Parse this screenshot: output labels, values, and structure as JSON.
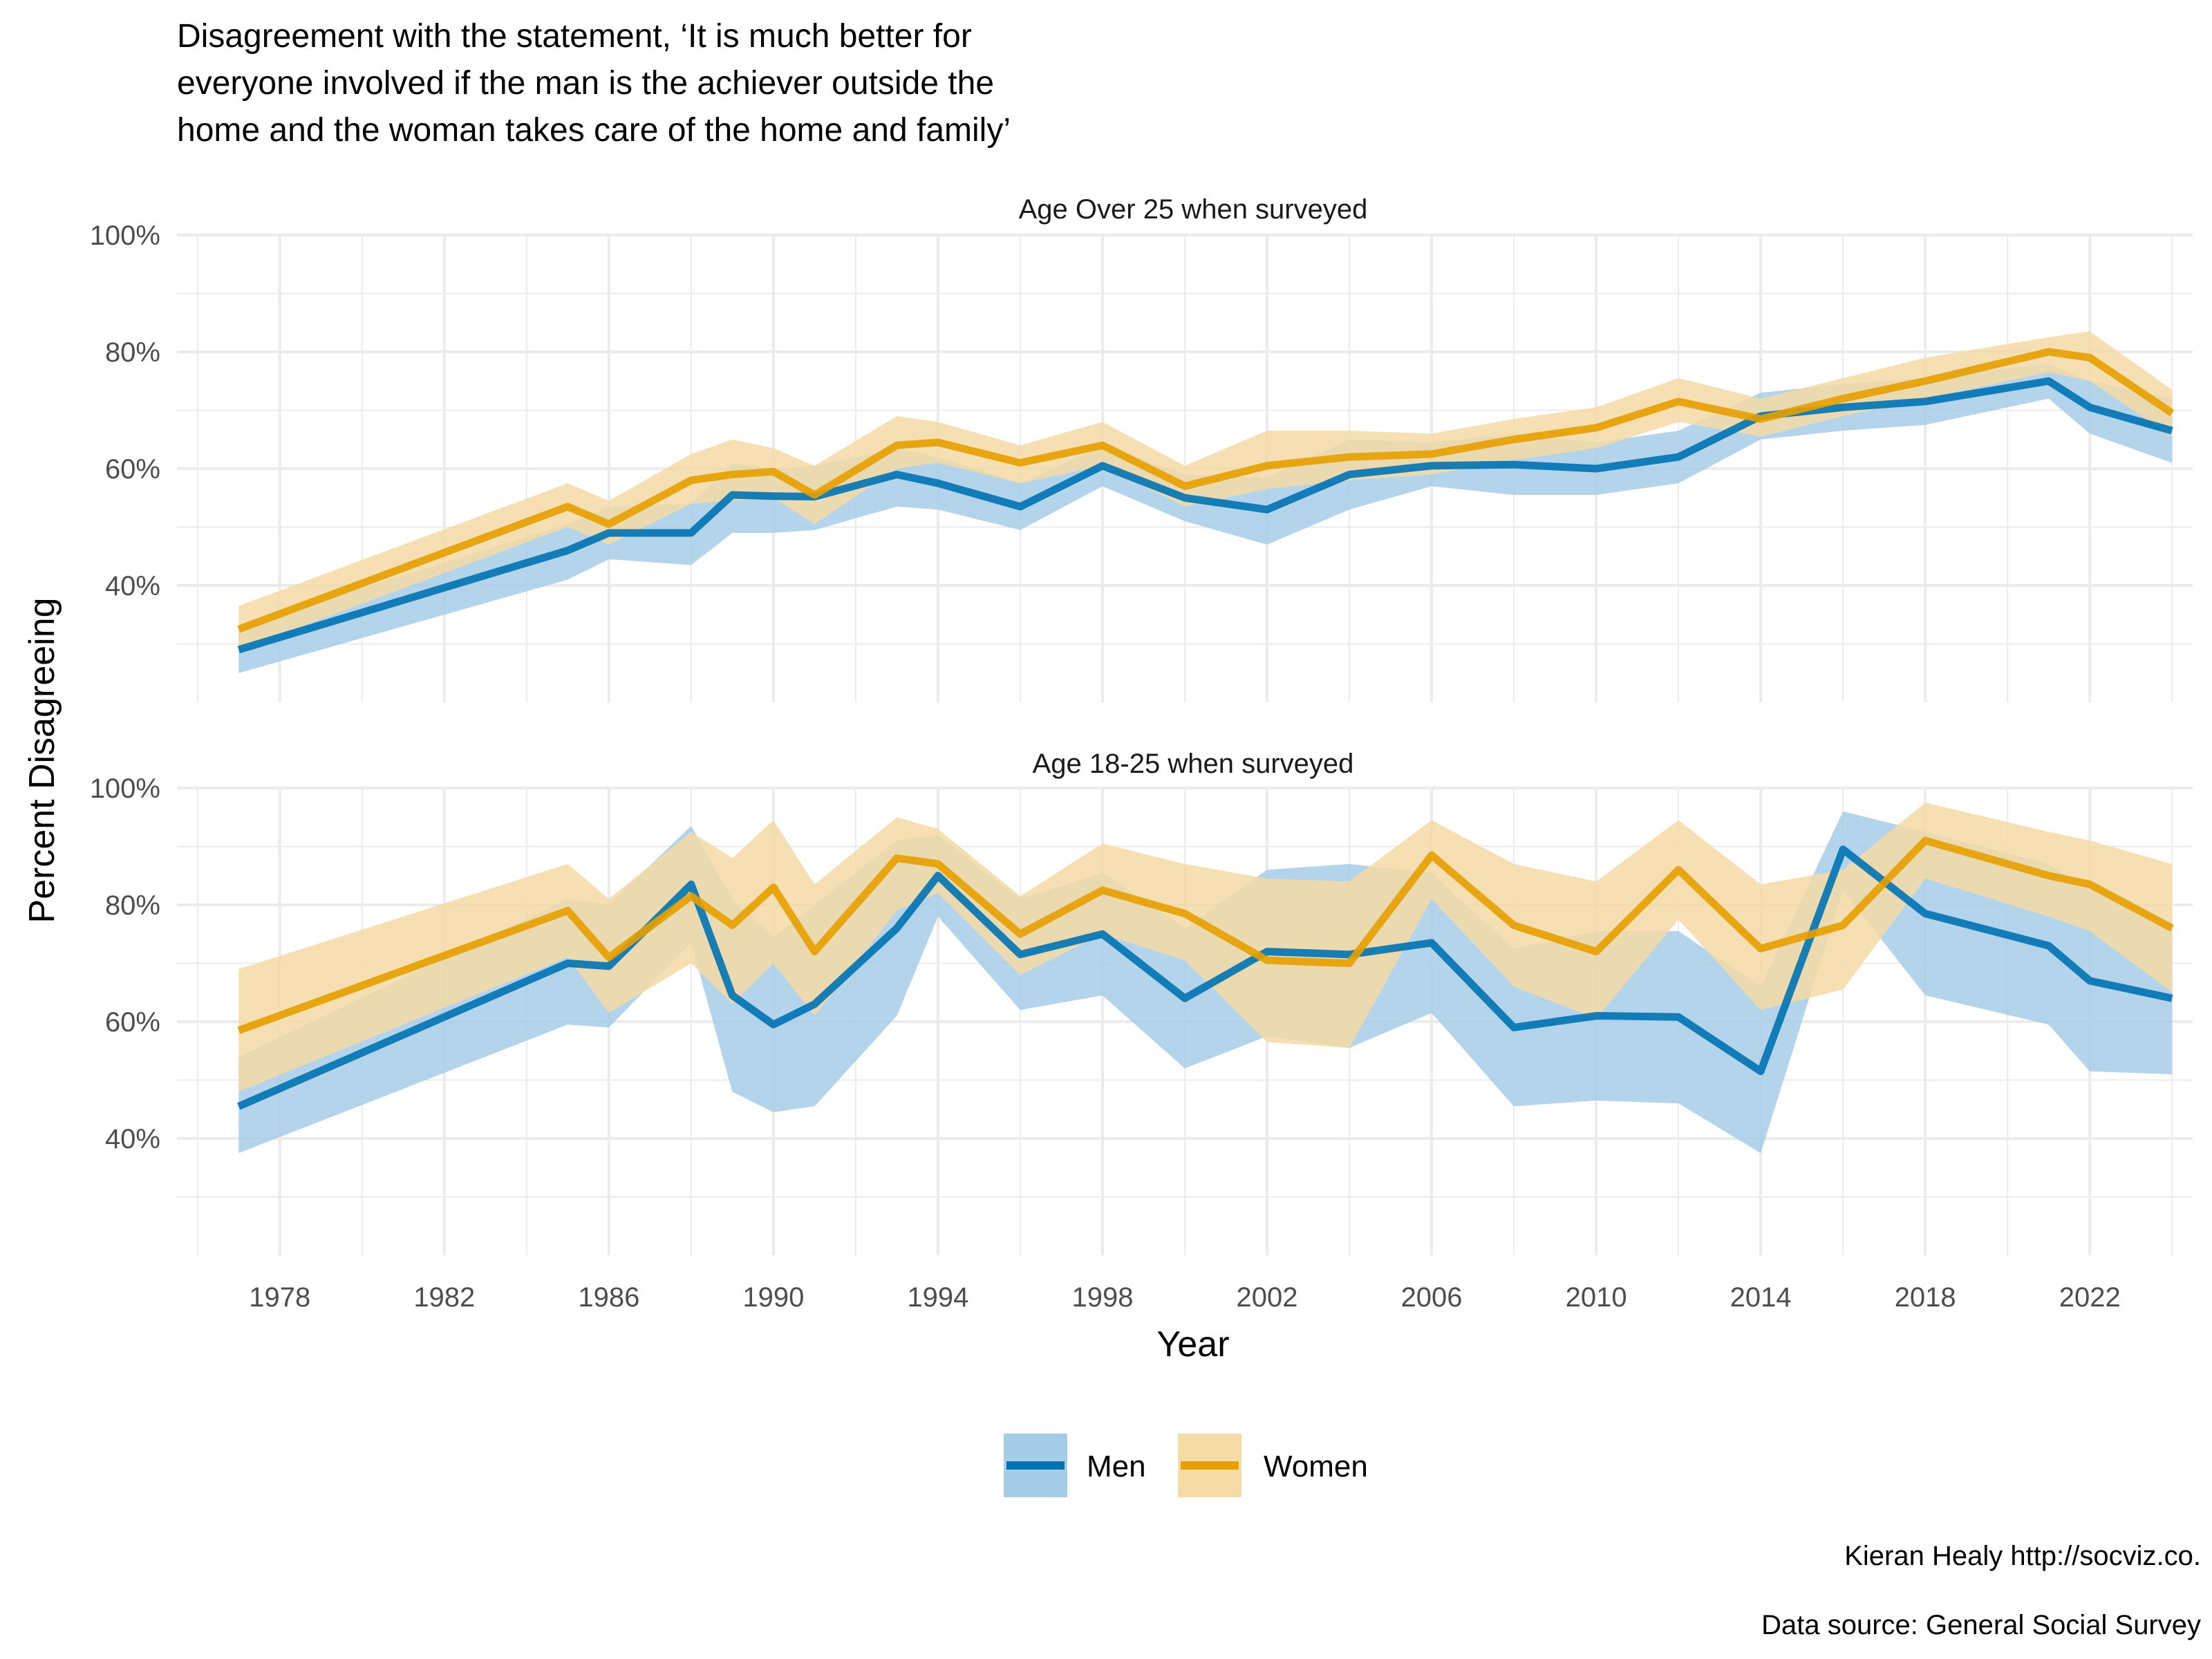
{
  "chart_data": {
    "type": "line",
    "title": "Disagreement with the statement, ‘It is much better for everyone involved if the man is the achiever outside the home and the woman takes care of the home and family’",
    "title_lines": [
      "Disagreement with the statement, ‘It is much better for",
      "everyone involved if the man is the achiever outside the",
      "home and the woman takes care of the home and family’"
    ],
    "xlabel": "Year",
    "ylabel": "Percent Disagreeing",
    "xlim": [
      1975.5,
      2024.5
    ],
    "ylim": [
      0.2,
      1.0
    ],
    "x_ticks": [
      1978,
      1982,
      1986,
      1990,
      1994,
      1998,
      2002,
      2006,
      2010,
      2014,
      2018,
      2022
    ],
    "x_tick_labels": [
      "1978",
      "1982",
      "1986",
      "1990",
      "1994",
      "1998",
      "2002",
      "2006",
      "2010",
      "2014",
      "2018",
      "2022"
    ],
    "y_ticks": [
      0.4,
      0.6,
      0.8,
      1.0
    ],
    "y_tick_labels": [
      "40%",
      "60%",
      "80%",
      "100%"
    ],
    "grid": true,
    "legend_position": "bottom",
    "legend": [
      {
        "name": "Men",
        "color": "#0072B2",
        "fill": "#a6cde6"
      },
      {
        "name": "Women",
        "color": "#E69F00",
        "fill": "#f5dba6"
      }
    ],
    "caption_lines": [
      "Kieran Healy http://socviz.co.",
      "Data source: General Social Survey"
    ],
    "panels": [
      {
        "label": "Age Over 25 when surveyed",
        "series": [
          {
            "name": "Men",
            "x": [
              1977,
              1985,
              1986,
              1988,
              1989,
              1990,
              1991,
              1993,
              1994,
              1996,
              1998,
              2000,
              2002,
              2004,
              2006,
              2008,
              2010,
              2012,
              2014,
              2016,
              2018,
              2021,
              2022,
              2024
            ],
            "y": [
              0.29,
              0.46,
              0.49,
              0.49,
              0.555,
              0.553,
              0.552,
              0.59,
              0.575,
              0.535,
              0.605,
              0.55,
              0.53,
              0.59,
              0.605,
              0.607,
              0.6,
              0.62,
              0.69,
              0.705,
              0.715,
              0.75,
              0.705,
              0.665
            ],
            "lower": [
              0.25,
              0.41,
              0.445,
              0.435,
              0.49,
              0.49,
              0.495,
              0.535,
              0.53,
              0.495,
              0.57,
              0.51,
              0.47,
              0.53,
              0.57,
              0.555,
              0.555,
              0.575,
              0.65,
              0.665,
              0.675,
              0.72,
              0.66,
              0.61
            ],
            "upper": [
              0.33,
              0.505,
              0.535,
              0.54,
              0.61,
              0.6,
              0.605,
              0.635,
              0.62,
              0.575,
              0.64,
              0.59,
              0.585,
              0.65,
              0.645,
              0.66,
              0.645,
              0.665,
              0.73,
              0.745,
              0.755,
              0.78,
              0.75,
              0.72
            ]
          },
          {
            "name": "Women",
            "x": [
              1977,
              1985,
              1986,
              1988,
              1989,
              1990,
              1991,
              1993,
              1994,
              1996,
              1998,
              2000,
              2002,
              2004,
              2006,
              2008,
              2010,
              2012,
              2014,
              2016,
              2018,
              2021,
              2022,
              2024
            ],
            "y": [
              0.325,
              0.535,
              0.505,
              0.58,
              0.59,
              0.595,
              0.555,
              0.64,
              0.645,
              0.61,
              0.64,
              0.57,
              0.605,
              0.62,
              0.625,
              0.65,
              0.67,
              0.715,
              0.685,
              0.72,
              0.75,
              0.8,
              0.79,
              0.695
            ],
            "lower": [
              0.29,
              0.5,
              0.47,
              0.54,
              0.545,
              0.55,
              0.505,
              0.6,
              0.61,
              0.575,
              0.605,
              0.535,
              0.565,
              0.58,
              0.59,
              0.615,
              0.635,
              0.68,
              0.655,
              0.69,
              0.72,
              0.765,
              0.75,
              0.655
            ],
            "upper": [
              0.365,
              0.575,
              0.545,
              0.625,
              0.65,
              0.635,
              0.605,
              0.69,
              0.68,
              0.64,
              0.68,
              0.605,
              0.665,
              0.665,
              0.66,
              0.685,
              0.705,
              0.755,
              0.72,
              0.755,
              0.79,
              0.825,
              0.835,
              0.735
            ]
          }
        ]
      },
      {
        "label": "Age 18-25 when surveyed",
        "series": [
          {
            "name": "Men",
            "x": [
              1977,
              1985,
              1986,
              1988,
              1989,
              1990,
              1991,
              1993,
              1994,
              1996,
              1998,
              2000,
              2002,
              2004,
              2006,
              2008,
              2010,
              2012,
              2014,
              2016,
              2018,
              2021,
              2022,
              2024
            ],
            "y": [
              0.455,
              0.7,
              0.695,
              0.835,
              0.645,
              0.595,
              0.63,
              0.76,
              0.85,
              0.715,
              0.75,
              0.64,
              0.72,
              0.715,
              0.735,
              0.59,
              0.61,
              0.608,
              0.515,
              0.895,
              0.785,
              0.73,
              0.67,
              0.64
            ],
            "lower": [
              0.375,
              0.595,
              0.59,
              0.735,
              0.48,
              0.445,
              0.455,
              0.61,
              0.78,
              0.62,
              0.645,
              0.52,
              0.575,
              0.555,
              0.615,
              0.455,
              0.465,
              0.46,
              0.375,
              0.825,
              0.645,
              0.595,
              0.515,
              0.51
            ],
            "upper": [
              0.54,
              0.81,
              0.8,
              0.935,
              0.81,
              0.745,
              0.8,
              0.91,
              0.92,
              0.81,
              0.855,
              0.76,
              0.86,
              0.87,
              0.855,
              0.725,
              0.755,
              0.755,
              0.66,
              0.96,
              0.925,
              0.87,
              0.825,
              0.77
            ]
          },
          {
            "name": "Women",
            "x": [
              1977,
              1985,
              1986,
              1988,
              1989,
              1990,
              1991,
              1993,
              1994,
              1996,
              1998,
              2000,
              2002,
              2004,
              2006,
              2008,
              2010,
              2012,
              2014,
              2016,
              2018,
              2021,
              2022,
              2024
            ],
            "y": [
              0.585,
              0.79,
              0.71,
              0.815,
              0.765,
              0.83,
              0.72,
              0.88,
              0.87,
              0.75,
              0.825,
              0.785,
              0.705,
              0.7,
              0.885,
              0.765,
              0.72,
              0.86,
              0.725,
              0.765,
              0.91,
              0.85,
              0.835,
              0.76
            ],
            "lower": [
              0.48,
              0.71,
              0.615,
              0.7,
              0.63,
              0.7,
              0.61,
              0.79,
              0.82,
              0.68,
              0.75,
              0.705,
              0.565,
              0.555,
              0.81,
              0.66,
              0.605,
              0.775,
              0.62,
              0.655,
              0.845,
              0.78,
              0.755,
              0.65
            ],
            "upper": [
              0.69,
              0.87,
              0.81,
              0.925,
              0.88,
              0.945,
              0.835,
              0.95,
              0.93,
              0.815,
              0.905,
              0.87,
              0.845,
              0.84,
              0.945,
              0.87,
              0.84,
              0.945,
              0.835,
              0.86,
              0.975,
              0.925,
              0.91,
              0.87
            ]
          }
        ]
      }
    ]
  }
}
